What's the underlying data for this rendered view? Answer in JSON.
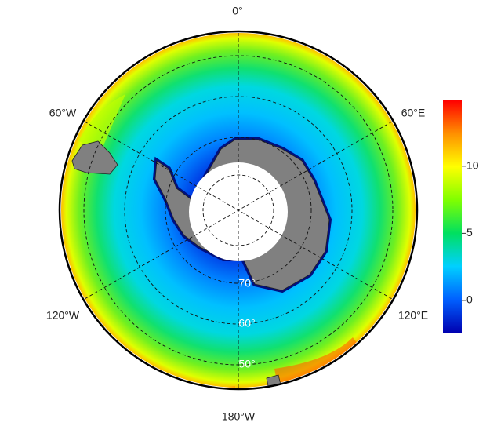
{
  "map": {
    "longitude_labels": [
      "0°",
      "60°E",
      "120°E",
      "180°W",
      "120°W",
      "60°W"
    ],
    "latitude_labels": [
      "70°",
      "60°",
      "50°"
    ]
  },
  "colorbar": {
    "lim": [
      -2.4,
      14.9
    ],
    "ticks": [
      0,
      5,
      10
    ],
    "colors": [
      "#0000b0",
      "#0060ff",
      "#00d0ff",
      "#00e060",
      "#80ff00",
      "#ffff00",
      "#ff9000",
      "#ff0000"
    ]
  }
}
